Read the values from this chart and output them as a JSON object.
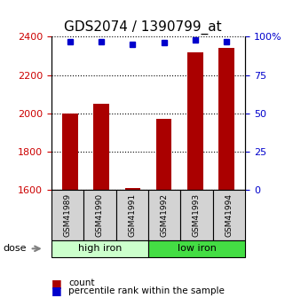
{
  "title": "GDS2074 / 1390799_at",
  "categories": [
    "GSM41989",
    "GSM41990",
    "GSM41991",
    "GSM41992",
    "GSM41993",
    "GSM41994"
  ],
  "bar_values": [
    2000,
    2050,
    1610,
    1970,
    2320,
    2340
  ],
  "percentile_values": [
    97,
    97,
    95,
    96,
    98,
    97
  ],
  "ylim_left": [
    1600,
    2400
  ],
  "ylim_right": [
    0,
    100
  ],
  "yticks_left": [
    1600,
    1800,
    2000,
    2200,
    2400
  ],
  "yticks_right": [
    0,
    25,
    50,
    75,
    100
  ],
  "bar_color": "#aa0000",
  "dot_color": "#0000cc",
  "bar_width": 0.5,
  "group1": [
    "GSM41989",
    "GSM41990",
    "GSM41991"
  ],
  "group2": [
    "GSM41992",
    "GSM41993",
    "GSM41994"
  ],
  "group1_label": "high iron",
  "group2_label": "low iron",
  "group1_color": "#ccffcc",
  "group2_color": "#44dd44",
  "sample_box_color": "#d3d3d3",
  "legend_count_label": "count",
  "legend_pct_label": "percentile rank within the sample",
  "dose_label": "dose",
  "title_fontsize": 11,
  "tick_fontsize": 8,
  "axis_left_color": "#cc0000",
  "axis_right_color": "#0000cc"
}
